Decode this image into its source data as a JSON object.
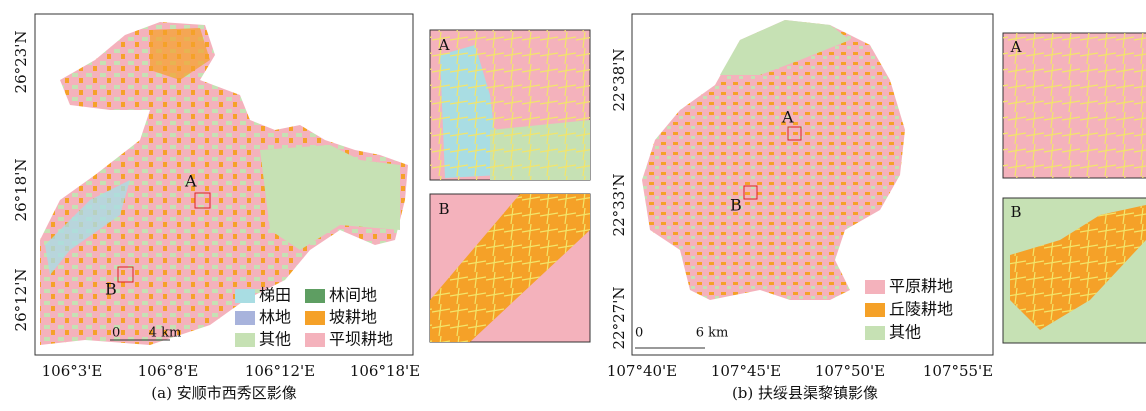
{
  "panels": [
    {
      "caption": "(a) 安顺市西秀区影像",
      "y_labels": [
        "26°23'N",
        "26°18'N",
        "26°12'N"
      ],
      "x_labels": [
        "106°3'E",
        "106°8'E",
        "106°12'E",
        "106°18'E"
      ],
      "legend": [
        {
          "label": "梯田",
          "color": "#a9dde3"
        },
        {
          "label": "林间地",
          "color": "#5e9e62"
        },
        {
          "label": "林地",
          "color": "#a8b3dc"
        },
        {
          "label": "坡耕地",
          "color": "#f5a128"
        },
        {
          "label": "其他",
          "color": "#c6e1b4"
        },
        {
          "label": "平坝耕地",
          "color": "#f4b2bc"
        }
      ],
      "scale": {
        "start": "0",
        "end": "4 km"
      },
      "markers": [
        "A",
        "B"
      ],
      "insets": [
        "A",
        "B"
      ]
    },
    {
      "caption": "(b) 扶绥县渠黎镇影像",
      "y_labels": [
        "22°38'N",
        "22°33'N",
        "22°27'N"
      ],
      "x_labels": [
        "107°40'E",
        "107°45'E",
        "107°50'E",
        "107°55'E"
      ],
      "legend": [
        {
          "label": "平原耕地",
          "color": "#f4b2bc"
        },
        {
          "label": "丘陵耕地",
          "color": "#f5a128"
        },
        {
          "label": "其他",
          "color": "#c6e1b4"
        }
      ],
      "scale": {
        "start": "0",
        "end": "6 km"
      },
      "markers": [
        "A",
        "B"
      ],
      "insets": [
        "A",
        "B"
      ]
    }
  ]
}
